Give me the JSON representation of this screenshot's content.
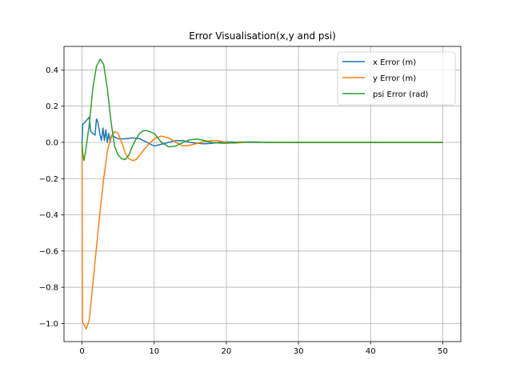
{
  "chart_data": {
    "type": "line",
    "title": "Error Visualisation(x,y and psi)",
    "xlabel": "",
    "ylabel": "",
    "xlim": [
      -2.5,
      52.5
    ],
    "ylim": [
      -1.1,
      0.53
    ],
    "xticks": [
      0,
      10,
      20,
      30,
      40,
      50
    ],
    "yticks": [
      -1.0,
      -0.8,
      -0.6,
      -0.4,
      -0.2,
      0.0,
      0.2,
      0.4
    ],
    "ytick_labels": [
      "−1.0",
      "−0.8",
      "−0.6",
      "−0.4",
      "−0.2",
      "0.0",
      "0.2",
      "0.4"
    ],
    "xtick_labels": [
      "0",
      "10",
      "20",
      "30",
      "40",
      "50"
    ],
    "grid": true,
    "legend_position": "top-right",
    "series": [
      {
        "name": "x Error (m)",
        "color": "#1f77b4",
        "points": [
          [
            0,
            0.0
          ],
          [
            0.1,
            0.1
          ],
          [
            0.4,
            0.11
          ],
          [
            0.8,
            0.13
          ],
          [
            1.0,
            0.14
          ],
          [
            1.2,
            0.06
          ],
          [
            1.5,
            0.05
          ],
          [
            1.8,
            0.04
          ],
          [
            2.0,
            0.13
          ],
          [
            2.2,
            0.11
          ],
          [
            2.5,
            0.04
          ],
          [
            2.7,
            0.01
          ],
          [
            2.9,
            0.08
          ],
          [
            3.1,
            0.01
          ],
          [
            3.3,
            0.07
          ],
          [
            3.5,
            0.0
          ],
          [
            3.7,
            0.05
          ],
          [
            3.9,
            0.0
          ],
          [
            4.1,
            0.04
          ],
          [
            4.5,
            0.03
          ],
          [
            5.0,
            0.02
          ],
          [
            6.0,
            0.02
          ],
          [
            7.0,
            0.025
          ],
          [
            8.0,
            0.02
          ],
          [
            9.0,
            0.0
          ],
          [
            10.0,
            -0.02
          ],
          [
            11.0,
            -0.01
          ],
          [
            12.0,
            0.0
          ],
          [
            13.0,
            0.01
          ],
          [
            14.0,
            0.01
          ],
          [
            15.0,
            0.0
          ],
          [
            16.0,
            -0.005
          ],
          [
            17.0,
            -0.008
          ],
          [
            18.0,
            -0.005
          ],
          [
            19.0,
            0.0
          ],
          [
            20.0,
            0.003
          ],
          [
            22.0,
            0.0
          ],
          [
            25.0,
            0.0
          ],
          [
            30.0,
            0.0
          ],
          [
            35.0,
            0.0
          ],
          [
            40.0,
            0.0
          ],
          [
            45.0,
            0.0
          ],
          [
            50.0,
            0.0
          ]
        ]
      },
      {
        "name": "y Error (m)",
        "color": "#ff7f0e",
        "points": [
          [
            0,
            0.0
          ],
          [
            0.05,
            -0.99
          ],
          [
            0.3,
            -1.01
          ],
          [
            0.6,
            -1.03
          ],
          [
            1.0,
            -0.98
          ],
          [
            1.5,
            -0.78
          ],
          [
            2.0,
            -0.58
          ],
          [
            2.5,
            -0.38
          ],
          [
            3.0,
            -0.2
          ],
          [
            3.5,
            -0.05
          ],
          [
            4.0,
            0.03
          ],
          [
            4.5,
            0.06
          ],
          [
            5.0,
            0.05
          ],
          [
            5.5,
            0.0
          ],
          [
            6.0,
            -0.06
          ],
          [
            6.5,
            -0.09
          ],
          [
            7.0,
            -0.1
          ],
          [
            7.5,
            -0.095
          ],
          [
            8.0,
            -0.07
          ],
          [
            9.0,
            -0.02
          ],
          [
            10.0,
            0.02
          ],
          [
            11.0,
            0.035
          ],
          [
            12.0,
            0.025
          ],
          [
            13.0,
            0.0
          ],
          [
            14.0,
            -0.02
          ],
          [
            15.0,
            -0.015
          ],
          [
            16.0,
            -0.005
          ],
          [
            17.0,
            0.005
          ],
          [
            18.0,
            0.01
          ],
          [
            19.0,
            0.008
          ],
          [
            20.0,
            0.0
          ],
          [
            21.0,
            -0.004
          ],
          [
            22.0,
            -0.002
          ],
          [
            23.0,
            0.002
          ],
          [
            24.0,
            0.002
          ],
          [
            26.0,
            0.0
          ],
          [
            30.0,
            0.0
          ],
          [
            35.0,
            0.0
          ],
          [
            40.0,
            0.0
          ],
          [
            45.0,
            0.0
          ],
          [
            50.0,
            0.0
          ]
        ]
      },
      {
        "name": "psi Error (rad)",
        "color": "#2ca02c",
        "points": [
          [
            0,
            0.0
          ],
          [
            0.1,
            -0.06
          ],
          [
            0.25,
            -0.1
          ],
          [
            0.5,
            -0.05
          ],
          [
            1.0,
            0.1
          ],
          [
            1.5,
            0.3
          ],
          [
            2.0,
            0.42
          ],
          [
            2.5,
            0.46
          ],
          [
            3.0,
            0.43
          ],
          [
            3.5,
            0.3
          ],
          [
            4.0,
            0.12
          ],
          [
            4.5,
            -0.02
          ],
          [
            5.0,
            -0.07
          ],
          [
            5.5,
            -0.09
          ],
          [
            6.0,
            -0.095
          ],
          [
            6.5,
            -0.07
          ],
          [
            7.0,
            -0.02
          ],
          [
            7.5,
            0.02
          ],
          [
            8.0,
            0.05
          ],
          [
            8.5,
            0.065
          ],
          [
            9.0,
            0.065
          ],
          [
            10.0,
            0.05
          ],
          [
            11.0,
            0.0
          ],
          [
            12.0,
            -0.025
          ],
          [
            13.0,
            -0.02
          ],
          [
            14.0,
            0.0
          ],
          [
            15.0,
            0.015
          ],
          [
            16.0,
            0.018
          ],
          [
            17.0,
            0.01
          ],
          [
            18.0,
            0.0
          ],
          [
            19.0,
            -0.004
          ],
          [
            20.0,
            -0.005
          ],
          [
            21.0,
            -0.002
          ],
          [
            22.0,
            0.002
          ],
          [
            24.0,
            0.002
          ],
          [
            26.0,
            0.0
          ],
          [
            30.0,
            0.0
          ],
          [
            35.0,
            0.0
          ],
          [
            40.0,
            0.0
          ],
          [
            45.0,
            0.0
          ],
          [
            50.0,
            0.0
          ]
        ]
      }
    ]
  }
}
